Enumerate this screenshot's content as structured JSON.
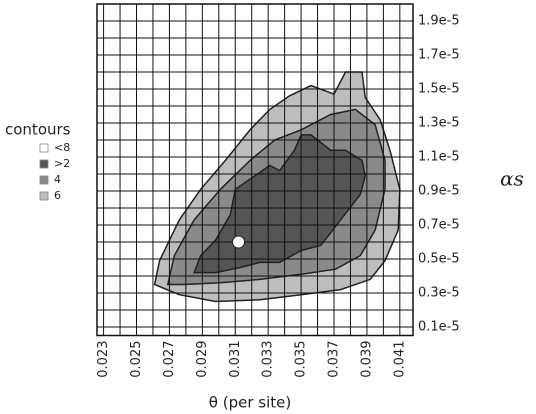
{
  "chart_data": {
    "type": "contour",
    "x_label": "θ (per site)",
    "y_label": "αs",
    "legend_title": "contours",
    "xlim": [
      0.0226,
      0.0418
    ],
    "ylim": [
      5e-07,
      2e-05
    ],
    "xticks": [
      0.023,
      0.025,
      0.027,
      0.029,
      0.031,
      0.033,
      0.035,
      0.037,
      0.039,
      0.041
    ],
    "yticks": [
      {
        "value": 1e-06,
        "label": "0.1e-5"
      },
      {
        "value": 3e-06,
        "label": "0.3e-5"
      },
      {
        "value": 5e-06,
        "label": "0.5e-5"
      },
      {
        "value": 7e-06,
        "label": "0.7e-5"
      },
      {
        "value": 9e-06,
        "label": "0.9e-5"
      },
      {
        "value": 1.1e-05,
        "label": "1.1e-5"
      },
      {
        "value": 1.3e-05,
        "label": "1.3e-5"
      },
      {
        "value": 1.5e-05,
        "label": "1.5e-5"
      },
      {
        "value": 1.7e-05,
        "label": "1.7e-5"
      },
      {
        "value": 1.9e-05,
        "label": "1.9e-5"
      }
    ],
    "grid": true,
    "series": [
      {
        "name": "6",
        "color": "#bdbdbd",
        "x": [
          0.0261,
          0.0264,
          0.0276,
          0.0289,
          0.0304,
          0.0319,
          0.0331,
          0.0343,
          0.0356,
          0.037,
          0.0377,
          0.0387,
          0.0389,
          0.0398,
          0.0404,
          0.041,
          0.0409,
          0.0401,
          0.0392,
          0.0374,
          0.035,
          0.0325,
          0.0298,
          0.0276
        ],
        "y": [
          3.5e-06,
          4.9e-06,
          7.3e-06,
          9.1e-06,
          1.08e-05,
          1.26e-05,
          1.38e-05,
          1.46e-05,
          1.52e-05,
          1.47e-05,
          1.6e-05,
          1.6e-05,
          1.45e-05,
          1.32e-05,
          1.14e-05,
          9.1e-06,
          6.7e-06,
          4.9e-06,
          3.8e-06,
          3.2e-06,
          2.9e-06,
          2.6e-06,
          2.5e-06,
          2.9e-06
        ]
      },
      {
        "name": "4",
        "color": "#8a8a8a",
        "x": [
          0.0269,
          0.0273,
          0.0285,
          0.0301,
          0.0319,
          0.0334,
          0.035,
          0.0368,
          0.0383,
          0.0395,
          0.0401,
          0.0401,
          0.0395,
          0.0386,
          0.0371,
          0.035,
          0.0325,
          0.0301,
          0.0279
        ],
        "y": [
          3.5e-06,
          5.2e-06,
          7.3e-06,
          9.1e-06,
          1.08e-05,
          1.2e-05,
          1.26e-05,
          1.35e-05,
          1.38e-05,
          1.29e-05,
          1.08e-05,
          9.1e-06,
          6.7e-06,
          5.2e-06,
          4.4e-06,
          4.1e-06,
          3.8e-06,
          3.6e-06,
          3.5e-06
        ]
      },
      {
        "name": ">2",
        "color": "#555555",
        "x": [
          0.0285,
          0.0289,
          0.0298,
          0.0307,
          0.031,
          0.0322,
          0.0331,
          0.0337,
          0.0346,
          0.035,
          0.0356,
          0.0368,
          0.0377,
          0.0387,
          0.0389,
          0.0386,
          0.0374,
          0.0362,
          0.035,
          0.0337,
          0.0325,
          0.0313,
          0.0298
        ],
        "y": [
          4.2e-06,
          5.2e-06,
          6.1e-06,
          7.6e-06,
          9.1e-06,
          9.9e-06,
          1.05e-05,
          1.02e-05,
          1.14e-05,
          1.23e-05,
          1.23e-05,
          1.14e-05,
          1.14e-05,
          1.08e-05,
          9.9e-06,
          8.8e-06,
          7.3e-06,
          5.8e-06,
          5.5e-06,
          4.8e-06,
          4.8e-06,
          4.5e-06,
          4.2e-06
        ]
      },
      {
        "name": "<8",
        "color": "#ffffff"
      }
    ],
    "point": {
      "x": 0.0312,
      "y": 6e-06,
      "color": "#ffffff"
    }
  }
}
